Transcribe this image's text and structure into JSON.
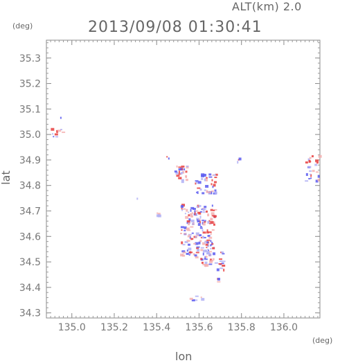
{
  "header": {
    "altitude_label": "ALT(km) 2.0",
    "timestamp": "2013/09/08 01:30:41"
  },
  "axes": {
    "y_unit": "(deg)",
    "x_unit": "(deg)",
    "y_title": "lat",
    "x_title": "lon"
  },
  "chart_data": {
    "type": "heatmap",
    "xlabel": "lon",
    "ylabel": "lat",
    "xlim": [
      134.88,
      136.17
    ],
    "ylim": [
      34.28,
      35.37
    ],
    "x_ticks": [
      "135.0",
      "135.2",
      "135.4",
      "135.6",
      "135.8",
      "136.0"
    ],
    "x_tick_values": [
      135.0,
      135.2,
      135.4,
      135.6,
      135.8,
      136.0
    ],
    "y_ticks": [
      "34.3",
      "34.4",
      "34.5",
      "34.6",
      "34.7",
      "34.8",
      "34.9",
      "35.0",
      "35.1",
      "35.2",
      "35.3"
    ],
    "y_tick_values": [
      34.3,
      34.4,
      34.5,
      34.6,
      34.7,
      34.8,
      34.9,
      35.0,
      35.1,
      35.2,
      35.3
    ],
    "colors": {
      "positive": "#e84040",
      "negative": "#5a5af0",
      "weak_positive": "#f4b0b0",
      "weak_negative": "#b0b0f4"
    },
    "clusters": [
      {
        "lon": 135.59,
        "lat": 34.62,
        "extent_lon": 0.08,
        "extent_lat": 0.11,
        "count": 180
      },
      {
        "lon": 135.51,
        "lat": 34.85,
        "extent_lon": 0.03,
        "extent_lat": 0.03,
        "count": 25
      },
      {
        "lon": 135.63,
        "lat": 34.81,
        "extent_lon": 0.05,
        "extent_lat": 0.04,
        "count": 40
      },
      {
        "lon": 135.66,
        "lat": 34.52,
        "extent_lon": 0.05,
        "extent_lat": 0.03,
        "count": 20
      },
      {
        "lon": 135.7,
        "lat": 34.49,
        "extent_lon": 0.02,
        "extent_lat": 0.02,
        "count": 8
      },
      {
        "lon": 135.68,
        "lat": 34.43,
        "extent_lon": 0.01,
        "extent_lat": 0.01,
        "count": 4
      },
      {
        "lon": 135.4,
        "lat": 34.69,
        "extent_lon": 0.01,
        "extent_lat": 0.01,
        "count": 4
      },
      {
        "lon": 136.13,
        "lat": 34.87,
        "extent_lon": 0.04,
        "extent_lat": 0.05,
        "count": 25
      },
      {
        "lon": 134.93,
        "lat": 35.03,
        "extent_lon": 0.03,
        "extent_lat": 0.05,
        "count": 10
      },
      {
        "lon": 135.57,
        "lat": 34.36,
        "extent_lon": 0.04,
        "extent_lat": 0.01,
        "count": 6
      },
      {
        "lon": 135.78,
        "lat": 34.9,
        "extent_lon": 0.01,
        "extent_lat": 0.01,
        "count": 3
      },
      {
        "lon": 135.31,
        "lat": 34.75,
        "extent_lon": 0.005,
        "extent_lat": 0.005,
        "count": 1
      },
      {
        "lon": 135.45,
        "lat": 34.91,
        "extent_lon": 0.005,
        "extent_lat": 0.01,
        "count": 2
      }
    ],
    "grid": false,
    "legend": "none"
  }
}
